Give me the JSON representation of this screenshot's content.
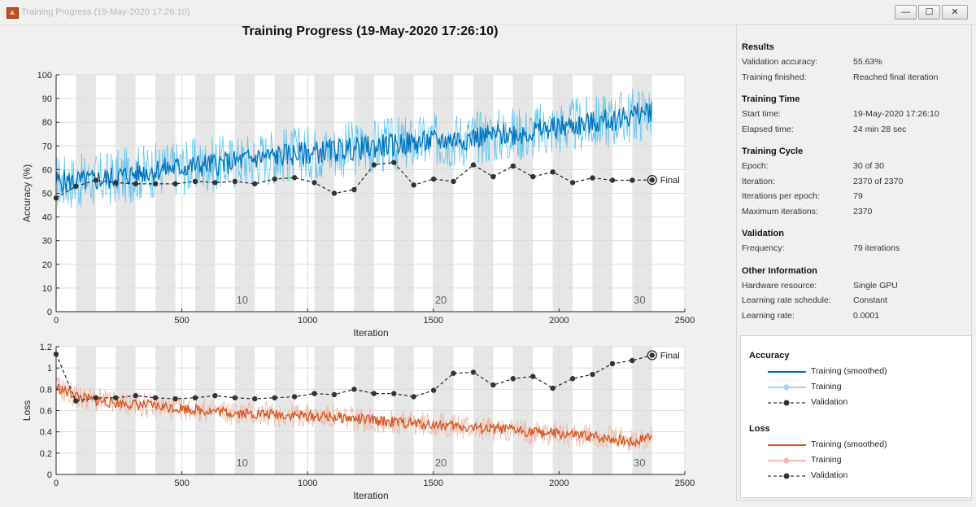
{
  "window": {
    "title": "Training Progress (19-May-2020 17:26:10)",
    "min_glyph": "—",
    "max_glyph": "☐",
    "close_glyph": "✕"
  },
  "plot": {
    "title": "Training Progress (19-May-2020 17:26:10)",
    "final_label": "Final"
  },
  "chart_data": [
    {
      "type": "line",
      "title": "Training Progress (19-May-2020 17:26:10)",
      "xlabel": "Iteration",
      "ylabel": "Accuracy (%)",
      "xlim": [
        0,
        2500
      ],
      "ylim": [
        0,
        100
      ],
      "xticks": [
        0,
        500,
        1000,
        1500,
        2000,
        2500
      ],
      "yticks": [
        0,
        10,
        20,
        30,
        40,
        50,
        60,
        70,
        80,
        90,
        100
      ],
      "epoch_labels": [
        {
          "epoch": 10,
          "x": 740
        },
        {
          "epoch": 20,
          "x": 1530
        },
        {
          "epoch": 30,
          "x": 2320
        }
      ],
      "epoch_iterations": 79,
      "epochs": 30,
      "final_iteration": 2370,
      "grid": true,
      "series": [
        {
          "name": "Training (smoothed)",
          "color": "#0072bd",
          "x": [
            0,
            100,
            200,
            300,
            400,
            500,
            600,
            700,
            800,
            900,
            1000,
            1100,
            1200,
            1300,
            1400,
            1500,
            1600,
            1700,
            1800,
            1900,
            2000,
            2100,
            2200,
            2300,
            2370
          ],
          "y": [
            55,
            55,
            56,
            58,
            60,
            61,
            62,
            63,
            65,
            66,
            67,
            68,
            69,
            70,
            71,
            72,
            73,
            74,
            75,
            76,
            78,
            79,
            81,
            83,
            85
          ]
        },
        {
          "name": "Training",
          "color": "#4dbeee",
          "x": [
            0,
            100,
            200,
            300,
            400,
            500,
            600,
            700,
            800,
            900,
            1000,
            1100,
            1200,
            1300,
            1400,
            1500,
            1600,
            1700,
            1800,
            1900,
            2000,
            2100,
            2200,
            2300,
            2370
          ],
          "y": [
            58,
            50,
            62,
            55,
            66,
            52,
            70,
            58,
            72,
            60,
            74,
            62,
            68,
            75,
            65,
            78,
            70,
            80,
            72,
            82,
            76,
            84,
            80,
            88,
            86
          ]
        },
        {
          "name": "Validation",
          "color": "#333333",
          "x": [
            0,
            79,
            158,
            237,
            316,
            395,
            474,
            553,
            632,
            711,
            790,
            869,
            948,
            1027,
            1106,
            1185,
            1264,
            1343,
            1422,
            1501,
            1580,
            1659,
            1738,
            1817,
            1896,
            1975,
            2054,
            2133,
            2212,
            2291,
            2370
          ],
          "y": [
            48,
            53,
            55.5,
            54.5,
            54,
            54,
            54,
            55,
            54.5,
            55,
            54,
            56,
            56.6,
            54.5,
            50,
            51.5,
            62,
            63,
            53.5,
            56,
            55,
            62,
            57,
            61.5,
            57,
            59,
            54.5,
            56.5,
            55.5,
            55.5,
            55.63
          ]
        }
      ]
    },
    {
      "type": "line",
      "xlabel": "Iteration",
      "ylabel": "Loss",
      "xlim": [
        0,
        2500
      ],
      "ylim": [
        0,
        1.2
      ],
      "xticks": [
        0,
        500,
        1000,
        1500,
        2000,
        2500
      ],
      "yticks": [
        0,
        0.2,
        0.4,
        0.6,
        0.8,
        1,
        1.2
      ],
      "epoch_labels": [
        {
          "epoch": 10,
          "x": 740
        },
        {
          "epoch": 20,
          "x": 1530
        },
        {
          "epoch": 30,
          "x": 2320
        }
      ],
      "grid": true,
      "series": [
        {
          "name": "Training (smoothed)",
          "color": "#d95319",
          "x": [
            0,
            100,
            200,
            300,
            400,
            500,
            600,
            700,
            800,
            900,
            1000,
            1100,
            1200,
            1300,
            1400,
            1500,
            1600,
            1700,
            1800,
            1900,
            2000,
            2100,
            2200,
            2300,
            2370
          ],
          "y": [
            0.82,
            0.72,
            0.68,
            0.66,
            0.64,
            0.62,
            0.6,
            0.58,
            0.57,
            0.56,
            0.55,
            0.54,
            0.52,
            0.5,
            0.48,
            0.47,
            0.45,
            0.43,
            0.42,
            0.4,
            0.38,
            0.36,
            0.34,
            0.3,
            0.38
          ]
        },
        {
          "name": "Training",
          "color": "#edb1a0",
          "x": [
            0,
            100,
            200,
            300,
            400,
            500,
            600,
            700,
            800,
            900,
            1000,
            1100,
            1200,
            1300,
            1400,
            1500,
            1600,
            1700,
            1800,
            1900,
            2000,
            2100,
            2200,
            2300,
            2370
          ],
          "y": [
            0.8,
            0.76,
            0.62,
            0.72,
            0.6,
            0.7,
            0.56,
            0.66,
            0.52,
            0.64,
            0.5,
            0.62,
            0.48,
            0.58,
            0.44,
            0.56,
            0.4,
            0.5,
            0.38,
            0.48,
            0.34,
            0.44,
            0.3,
            0.36,
            0.42
          ]
        },
        {
          "name": "Validation",
          "color": "#333333",
          "x": [
            0,
            79,
            158,
            237,
            316,
            395,
            474,
            553,
            632,
            711,
            790,
            869,
            948,
            1027,
            1106,
            1185,
            1264,
            1343,
            1422,
            1501,
            1580,
            1659,
            1738,
            1817,
            1896,
            1975,
            2054,
            2133,
            2212,
            2291,
            2370
          ],
          "y": [
            1.13,
            0.69,
            0.72,
            0.72,
            0.74,
            0.72,
            0.71,
            0.72,
            0.74,
            0.72,
            0.71,
            0.72,
            0.73,
            0.76,
            0.75,
            0.8,
            0.76,
            0.76,
            0.73,
            0.79,
            0.95,
            0.96,
            0.84,
            0.9,
            0.92,
            0.81,
            0.9,
            0.94,
            1.04,
            1.07,
            1.12
          ]
        }
      ]
    }
  ],
  "info": {
    "sections": [
      {
        "title": "Results",
        "rows": [
          {
            "label": "Validation accuracy:",
            "value": "55.63%"
          },
          {
            "label": "Training finished:",
            "value": "Reached final iteration"
          }
        ]
      },
      {
        "title": "Training Time",
        "rows": [
          {
            "label": "Start time:",
            "value": "19-May-2020 17:26:10"
          },
          {
            "label": "Elapsed time:",
            "value": "24 min 28 sec"
          }
        ]
      },
      {
        "title": "Training Cycle",
        "rows": [
          {
            "label": "Epoch:",
            "value": "30 of 30"
          },
          {
            "label": "Iteration:",
            "value": "2370 of 2370"
          },
          {
            "label": "Iterations per epoch:",
            "value": "79"
          },
          {
            "label": "Maximum iterations:",
            "value": "2370"
          }
        ]
      },
      {
        "title": "Validation",
        "rows": [
          {
            "label": "Frequency:",
            "value": "79 iterations"
          }
        ]
      },
      {
        "title": "Other Information",
        "rows": [
          {
            "label": "Hardware resource:",
            "value": "Single GPU"
          },
          {
            "label": "Learning rate schedule:",
            "value": "Constant"
          },
          {
            "label": "Learning rate:",
            "value": "0.0001"
          }
        ]
      }
    ]
  },
  "legend": {
    "accuracy_title": "Accuracy",
    "loss_title": "Loss",
    "accuracy_items": [
      {
        "label": "Training (smoothed)",
        "color": "#0072bd",
        "style": "solid"
      },
      {
        "label": "Training",
        "color": "#a6d4ef",
        "style": "marker"
      },
      {
        "label": "Validation",
        "color": "#333333",
        "style": "dashed-marker"
      }
    ],
    "loss_items": [
      {
        "label": "Training (smoothed)",
        "color": "#d95319",
        "style": "solid"
      },
      {
        "label": "Training",
        "color": "#f2b9a6",
        "style": "marker"
      },
      {
        "label": "Validation",
        "color": "#333333",
        "style": "dashed-marker"
      }
    ]
  }
}
